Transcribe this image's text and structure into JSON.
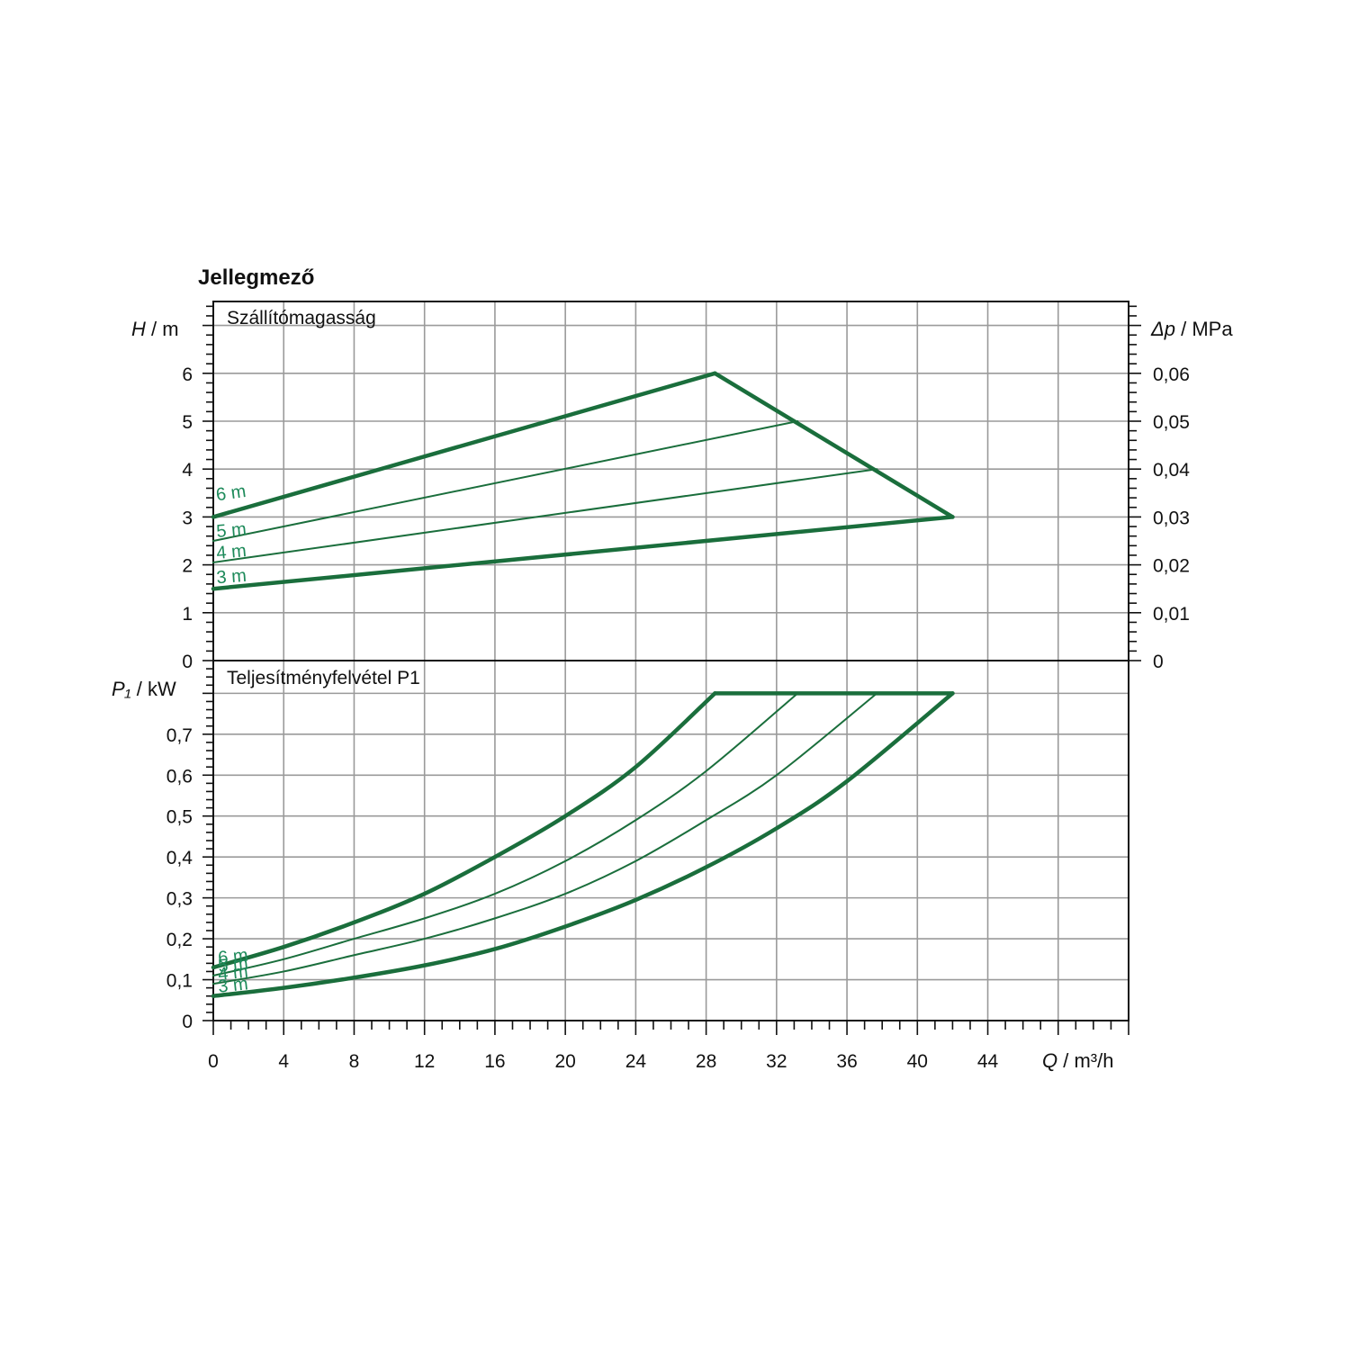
{
  "colors": {
    "curve": "#1a6e3c",
    "curve_label": "#1d8a5a",
    "grid": "#9a9a9a",
    "axis": "#111111"
  },
  "chart_data": [
    {
      "type": "line",
      "title": "Jellegmező",
      "panel_label": "Szállítómagasság",
      "xlabel_sym": "Q",
      "xlabel_unit": " / m³/h",
      "ylabel_sym": "H",
      "ylabel_unit": " / m",
      "y2label_sym": "Δp",
      "y2label_unit": " / MPa",
      "xlim": [
        0,
        52
      ],
      "ylim": [
        0,
        7.5
      ],
      "y2lim": [
        0,
        0.075
      ],
      "xticks": [
        "0",
        "4",
        "8",
        "12",
        "16",
        "20",
        "24",
        "28",
        "32",
        "36",
        "40",
        "44"
      ],
      "yticks": [
        "0",
        "1",
        "2",
        "3",
        "4",
        "5",
        "6"
      ],
      "y2ticks": [
        "0",
        "0,01",
        "0,02",
        "0,03",
        "0,04",
        "0,05",
        "0,06"
      ],
      "series": [
        {
          "name": "6 m",
          "x": [
            0,
            28.5
          ],
          "y": [
            3.0,
            6.0
          ],
          "thick": true
        },
        {
          "name": "5 m",
          "x": [
            0,
            33.2
          ],
          "y": [
            2.5,
            5.0
          ],
          "thick": false
        },
        {
          "name": "4 m",
          "x": [
            0,
            37.7
          ],
          "y": [
            2.05,
            4.0
          ],
          "thick": false
        },
        {
          "name": "3 m",
          "x": [
            0,
            42.0
          ],
          "y": [
            1.5,
            3.0
          ],
          "thick": true
        },
        {
          "name": "",
          "x": [
            28.5,
            42.0
          ],
          "y": [
            6.0,
            3.0
          ],
          "thick": true
        }
      ]
    },
    {
      "type": "line",
      "panel_label": "Teljesítményfelvétel P1",
      "ylabel_sym": "P₁",
      "ylabel_unit": " / kW",
      "xlim": [
        0,
        52
      ],
      "ylim": [
        0,
        0.88
      ],
      "yticks": [
        "0",
        "0,1",
        "0,2",
        "0,3",
        "0,4",
        "0,5",
        "0,6",
        "0,7"
      ],
      "series": [
        {
          "name": "6 m",
          "x": [
            0,
            4,
            8,
            12,
            16,
            20,
            24,
            28.5
          ],
          "y": [
            0.13,
            0.18,
            0.24,
            0.31,
            0.4,
            0.5,
            0.62,
            0.8
          ],
          "thick": true
        },
        {
          "name": "5 m",
          "x": [
            0,
            4,
            8,
            12,
            16,
            20,
            24,
            28,
            33.2
          ],
          "y": [
            0.11,
            0.15,
            0.2,
            0.25,
            0.31,
            0.39,
            0.49,
            0.61,
            0.8
          ],
          "thick": false
        },
        {
          "name": "4 m",
          "x": [
            0,
            4,
            8,
            12,
            16,
            20,
            24,
            28,
            32,
            37.7
          ],
          "y": [
            0.09,
            0.12,
            0.16,
            0.2,
            0.25,
            0.31,
            0.39,
            0.49,
            0.6,
            0.8
          ],
          "thick": false
        },
        {
          "name": "3 m",
          "x": [
            0,
            4,
            8,
            12,
            16,
            20,
            24,
            28,
            32,
            36,
            42.0
          ],
          "y": [
            0.06,
            0.08,
            0.105,
            0.135,
            0.175,
            0.23,
            0.295,
            0.375,
            0.47,
            0.585,
            0.8
          ],
          "thick": true
        },
        {
          "name": "",
          "x": [
            28.5,
            42.0
          ],
          "y": [
            0.8,
            0.8
          ],
          "thick": true
        }
      ]
    }
  ]
}
